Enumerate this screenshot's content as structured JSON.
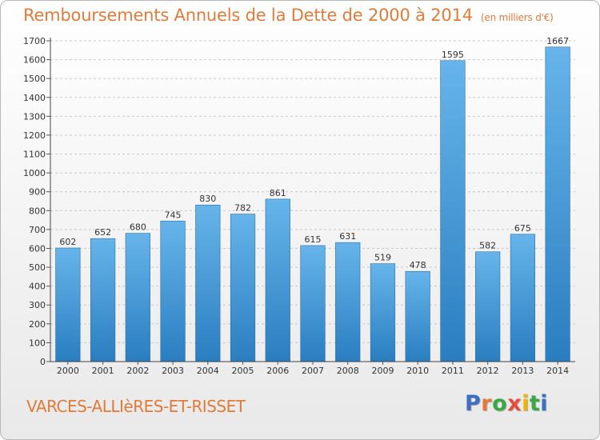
{
  "title": "Remboursements Annuels de la Dette de 2000 à 2014",
  "unit": "(en milliers d'€)",
  "commune": "VARCES-ALLIèRES-ET-RISSET",
  "brand": {
    "letters": [
      "P",
      "r",
      "o",
      "x",
      "i",
      "t",
      "i"
    ],
    "colors": [
      "#3a6fc4",
      "#e07b39",
      "#3aa845",
      "#e84c3d",
      "#f0b400",
      "#3aa845",
      "#3a6fc4"
    ]
  },
  "colors": {
    "bar_top": "#66b4ea",
    "bar_bottom": "#2a7ec0",
    "grid": "#c8c8c8",
    "accent": "#e07b39"
  },
  "chart_data": {
    "type": "bar",
    "title": "Remboursements Annuels de la Dette de 2000 à 2014",
    "categories": [
      "2000",
      "2001",
      "2002",
      "2003",
      "2004",
      "2005",
      "2006",
      "2007",
      "2008",
      "2009",
      "2010",
      "2011",
      "2012",
      "2013",
      "2014"
    ],
    "values": [
      602,
      652,
      680,
      745,
      830,
      782,
      861,
      615,
      631,
      519,
      478,
      1595,
      582,
      675,
      1667
    ],
    "ylim": [
      0,
      1700
    ],
    "yticks": [
      0,
      100,
      200,
      300,
      400,
      500,
      600,
      700,
      800,
      900,
      1000,
      1100,
      1200,
      1300,
      1400,
      1500,
      1600,
      1700
    ],
    "xlabel": "",
    "ylabel": "",
    "grid": true,
    "data_labels": true
  }
}
